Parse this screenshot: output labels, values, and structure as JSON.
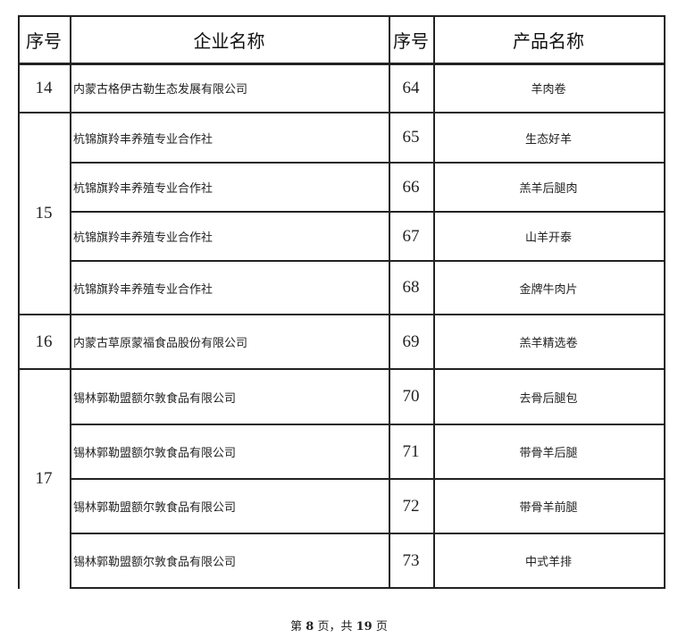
{
  "headers": {
    "seq": "序号",
    "company": "企业名称",
    "seq2": "序号",
    "product": "产品名称"
  },
  "groups": [
    {
      "seq": "14",
      "rows": [
        {
          "company": "内蒙古格伊古勒生态发展有限公司",
          "no": "64",
          "product": "羊肉卷"
        }
      ]
    },
    {
      "seq": "15",
      "rows": [
        {
          "company": "杭锦旗羚丰养殖专业合作社",
          "no": "65",
          "product": "生态好羊"
        },
        {
          "company": "杭锦旗羚丰养殖专业合作社",
          "no": "66",
          "product": "羔羊后腿肉"
        },
        {
          "company": "杭锦旗羚丰养殖专业合作社",
          "no": "67",
          "product": "山羊开泰"
        },
        {
          "company": "杭锦旗羚丰养殖专业合作社",
          "no": "68",
          "product": "金牌牛肉片"
        }
      ]
    },
    {
      "seq": "16",
      "rows": [
        {
          "company": "内蒙古草原蒙福食品股份有限公司",
          "no": "69",
          "product": "羔羊精选卷"
        }
      ]
    },
    {
      "seq": "17",
      "rows": [
        {
          "company": "锡林郭勒盟额尔敦食品有限公司",
          "no": "70",
          "product": "去骨后腿包"
        },
        {
          "company": "锡林郭勒盟额尔敦食品有限公司",
          "no": "71",
          "product": "带骨羊后腿"
        },
        {
          "company": "锡林郭勒盟额尔敦食品有限公司",
          "no": "72",
          "product": "带骨羊前腿"
        },
        {
          "company": "锡林郭勒盟额尔敦食品有限公司",
          "no": "73",
          "product": "中式羊排"
        }
      ]
    }
  ],
  "footer": {
    "prefix": "第 ",
    "page": "8",
    "mid": " 页，共 ",
    "total": "19",
    "suffix": " 页"
  }
}
